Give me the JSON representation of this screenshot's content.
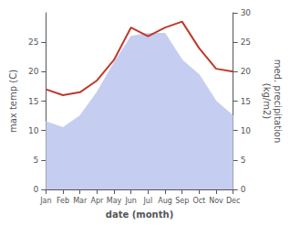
{
  "chart_data": {
    "type": "line",
    "xlabel": "date (month)",
    "ylabel": "max temp (C)",
    "y2label": "med. precipitation\n(kg/m2)",
    "categories": [
      "Jan",
      "Feb",
      "Mar",
      "Apr",
      "May",
      "Jun",
      "Jul",
      "Aug",
      "Sep",
      "Oct",
      "Nov",
      "Dec"
    ],
    "series": [
      {
        "type": "area",
        "color": "#c5cef0",
        "values": [
          11.5,
          10.5,
          12.5,
          16.5,
          21.5,
          26.0,
          26.5,
          26.5,
          22.0,
          19.5,
          15.0,
          12.5
        ]
      },
      {
        "type": "line",
        "color": "#c0392b",
        "axis": "y2",
        "values": [
          17.0,
          16.0,
          16.5,
          18.5,
          22.0,
          27.5,
          26.0,
          27.5,
          28.5,
          24.0,
          20.5,
          20.0
        ]
      }
    ],
    "ylim": [
      0,
      30
    ],
    "yticks": [
      0,
      5,
      10,
      15,
      20,
      25
    ],
    "y2lim": [
      0,
      30
    ],
    "y2ticks": [
      0,
      5,
      10,
      15,
      20,
      25,
      30
    ],
    "grid": false
  }
}
